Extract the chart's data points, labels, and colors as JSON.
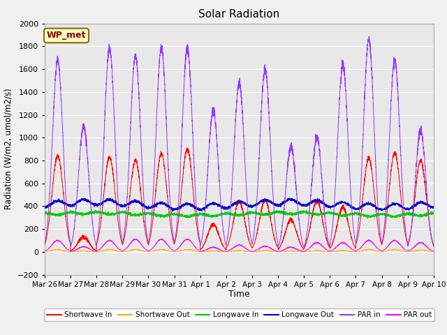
{
  "title": "Solar Radiation",
  "xlabel": "Time",
  "ylabel": "Radiation (W/m2, umol/m2/s)",
  "ylim": [
    -200,
    2000
  ],
  "annotation": "WP_met",
  "fig_bg_color": "#f0f0f0",
  "plot_bg_color": "#e8e8e8",
  "grid_color": "white",
  "tick_labels": [
    "Mar 26",
    "Mar 27",
    "Mar 28",
    "Mar 29",
    "Mar 30",
    "Mar 31",
    "Apr 1",
    "Apr 2",
    "Apr 3",
    "Apr 4",
    "Apr 5",
    "Apr 6",
    "Apr 7",
    "Apr 8",
    "Apr 9",
    "Apr 10"
  ],
  "legend_entries": [
    "Shortwave In",
    "Shortwave Out",
    "Longwave In",
    "Longwave Out",
    "PAR in",
    "PAR out"
  ],
  "legend_colors": [
    "#ff0000",
    "#ffaa00",
    "#00cc00",
    "#0000cc",
    "#9933ff",
    "#ff00ff"
  ],
  "n_days": 15,
  "pts_per_day": 288,
  "day_peaks_sw": [
    840,
    130,
    830,
    800,
    860,
    900,
    240,
    440,
    450,
    280,
    450,
    390,
    820,
    870,
    800
  ],
  "day_peaks_par": [
    1680,
    1100,
    1780,
    1720,
    1790,
    1790,
    1240,
    1480,
    1600,
    920,
    1000,
    1640,
    1860,
    1680,
    1060
  ],
  "day_peaks_parout": [
    100,
    45,
    100,
    110,
    110,
    110,
    40,
    60,
    50,
    40,
    80,
    80,
    100,
    100,
    80
  ],
  "day_peaks_swout": [
    20,
    8,
    20,
    20,
    20,
    20,
    8,
    10,
    10,
    8,
    10,
    10,
    20,
    20,
    15
  ]
}
